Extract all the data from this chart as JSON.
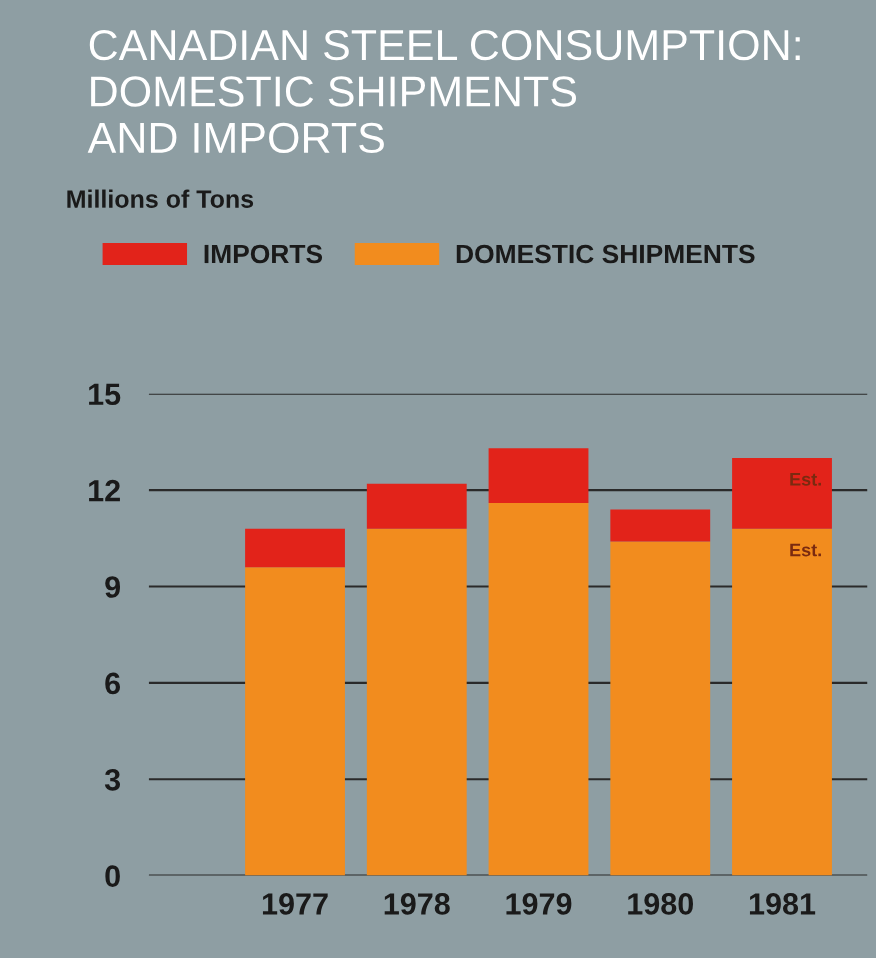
{
  "chart_data": {
    "type": "bar",
    "title": "CANADIAN STEEL CONSUMPTION:\nDOMESTIC SHIPMENTS\nAND IMPORTS",
    "categories": [
      "1977",
      "1978",
      "1979",
      "1980",
      "1981"
    ],
    "stacked": true,
    "series": [
      {
        "name": "DOMESTIC SHIPMENTS",
        "color": "#f28c1e",
        "values": [
          9.6,
          10.8,
          11.6,
          10.4,
          10.8
        ]
      },
      {
        "name": "IMPORTS",
        "color": "#e2231a",
        "values": [
          1.2,
          1.4,
          1.7,
          1.0,
          2.2
        ]
      }
    ],
    "ylim": [
      0,
      15
    ],
    "yticks": [
      0,
      3,
      6,
      9,
      12,
      15
    ],
    "grid": "y",
    "legend": "top left",
    "annotations": [
      "Millions of Tons",
      "Est.",
      "Est."
    ]
  }
}
